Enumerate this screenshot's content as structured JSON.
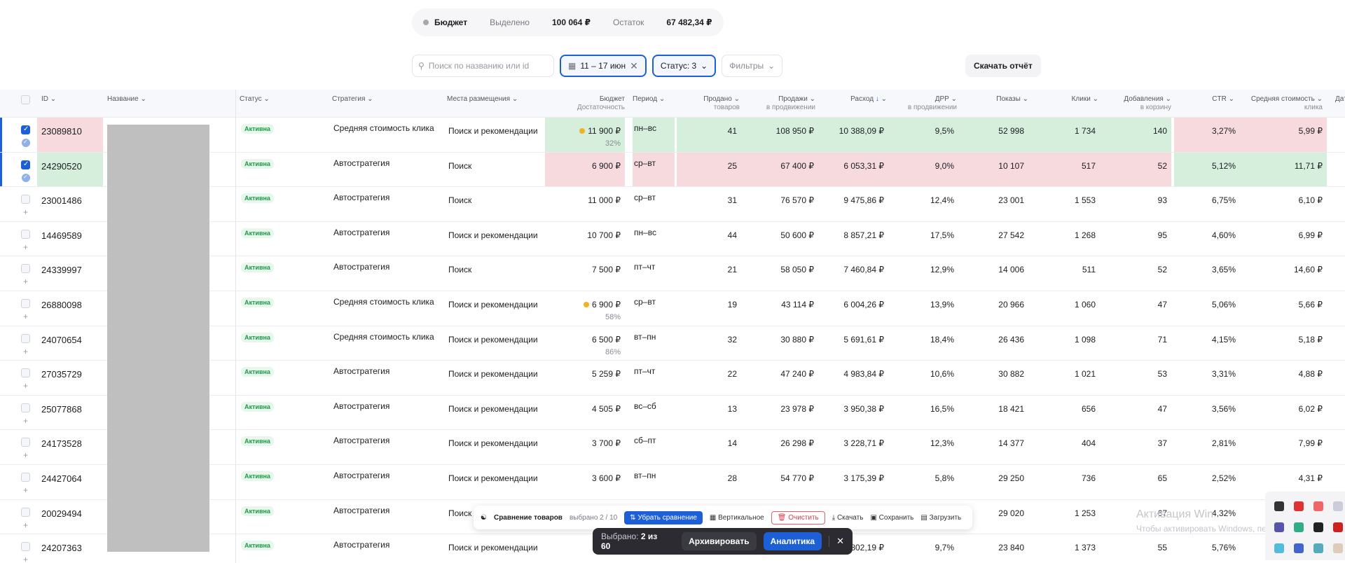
{
  "budget": {
    "label": "Бюджет",
    "allocated_label": "Выделено",
    "allocated_value": "100 064 ₽",
    "rest_label": "Остаток",
    "rest_value": "67 482,34 ₽"
  },
  "filters": {
    "search_placeholder": "Поиск по названию или id",
    "date": "11 – 17 июн",
    "status": "Статус: 3",
    "filters": "Фильтры",
    "download": "Скачать отчёт"
  },
  "headers": {
    "id": "ID",
    "name": "Название",
    "status": "Статус",
    "strategy": "Стратегия",
    "places": "Места размещения",
    "budget": "Бюджет",
    "budget_sub": "Достаточность",
    "period": "Период",
    "sold_1": "Продано",
    "sold_2": "товаров",
    "sales_1": "Продажи",
    "sales_2": "в продвижении",
    "spend": "Расход",
    "drr_1": "ДРР",
    "drr_2": "в продвижении",
    "views": "Показы",
    "clicks": "Клики",
    "cart_1": "Добавления",
    "cart_2": "в корзину",
    "ctr": "CTR",
    "cpc_1": "Средняя стоимость",
    "cpc_2": "клика",
    "date": "Дат"
  },
  "status_text": "Активна",
  "rows": [
    {
      "id": "23089810",
      "strategy": "Средняя стоимость клика",
      "places": "Поиск и рекомендации",
      "budget": "11 900 ₽",
      "pct": "32%",
      "period": "пн–вс",
      "sold": "41",
      "sales": "108 950 ₽",
      "spend": "10 388,09 ₽",
      "drr": "9,5%",
      "views": "52 998",
      "clicks": "1 734",
      "cart": "140",
      "ctr": "3,27%",
      "cpc": "5,99 ₽"
    },
    {
      "id": "24290520",
      "strategy": "Автостратегия",
      "places": "Поиск",
      "budget": "6 900 ₽",
      "pct": "",
      "period": "ср–вт",
      "sold": "25",
      "sales": "67 400 ₽",
      "spend": "6 053,31 ₽",
      "drr": "9,0%",
      "views": "10 107",
      "clicks": "517",
      "cart": "52",
      "ctr": "5,12%",
      "cpc": "11,71 ₽"
    },
    {
      "id": "23001486",
      "strategy": "Автостратегия",
      "places": "Поиск",
      "budget": "11 000 ₽",
      "pct": "",
      "period": "ср–вт",
      "sold": "31",
      "sales": "76 570 ₽",
      "spend": "9 475,86 ₽",
      "drr": "12,4%",
      "views": "23 001",
      "clicks": "1 553",
      "cart": "93",
      "ctr": "6,75%",
      "cpc": "6,10 ₽"
    },
    {
      "id": "14469589",
      "strategy": "Автостратегия",
      "places": "Поиск и рекомендации",
      "budget": "10 700 ₽",
      "pct": "",
      "period": "пн–вс",
      "sold": "44",
      "sales": "50 600 ₽",
      "spend": "8 857,21 ₽",
      "drr": "17,5%",
      "views": "27 542",
      "clicks": "1 268",
      "cart": "95",
      "ctr": "4,60%",
      "cpc": "6,99 ₽"
    },
    {
      "id": "24339997",
      "strategy": "Автостратегия",
      "places": "Поиск",
      "budget": "7 500 ₽",
      "pct": "",
      "period": "пт–чт",
      "sold": "21",
      "sales": "58 050 ₽",
      "spend": "7 460,84 ₽",
      "drr": "12,9%",
      "views": "14 006",
      "clicks": "511",
      "cart": "52",
      "ctr": "3,65%",
      "cpc": "14,60 ₽"
    },
    {
      "id": "26880098",
      "strategy": "Средняя стоимость клика",
      "places": "Поиск и рекомендации",
      "budget": "6 900 ₽",
      "pct": "58%",
      "period": "ср–вт",
      "sold": "19",
      "sales": "43 114 ₽",
      "spend": "6 004,26 ₽",
      "drr": "13,9%",
      "views": "20 966",
      "clicks": "1 060",
      "cart": "47",
      "ctr": "5,06%",
      "cpc": "5,66 ₽"
    },
    {
      "id": "24070654",
      "strategy": "Средняя стоимость клика",
      "places": "Поиск и рекомендации",
      "budget": "6 500 ₽",
      "pct": "86%",
      "period": "вт–пн",
      "sold": "32",
      "sales": "30 880 ₽",
      "spend": "5 691,61 ₽",
      "drr": "18,4%",
      "views": "26 436",
      "clicks": "1 098",
      "cart": "71",
      "ctr": "4,15%",
      "cpc": "5,18 ₽"
    },
    {
      "id": "27035729",
      "strategy": "Автостратегия",
      "places": "Поиск и рекомендации",
      "budget": "5 259 ₽",
      "pct": "",
      "period": "пт–чт",
      "sold": "22",
      "sales": "47 240 ₽",
      "spend": "4 983,84 ₽",
      "drr": "10,6%",
      "views": "30 882",
      "clicks": "1 021",
      "cart": "53",
      "ctr": "3,31%",
      "cpc": "4,88 ₽"
    },
    {
      "id": "25077868",
      "strategy": "Автостратегия",
      "places": "Поиск и рекомендации",
      "budget": "4 505 ₽",
      "pct": "",
      "period": "вс–сб",
      "sold": "13",
      "sales": "23 978 ₽",
      "spend": "3 950,38 ₽",
      "drr": "16,5%",
      "views": "18 421",
      "clicks": "656",
      "cart": "47",
      "ctr": "3,56%",
      "cpc": "6,02 ₽"
    },
    {
      "id": "24173528",
      "strategy": "Автостратегия",
      "places": "Поиск и рекомендации",
      "budget": "3 700 ₽",
      "pct": "",
      "period": "сб–пт",
      "sold": "14",
      "sales": "26 298 ₽",
      "spend": "3 228,71 ₽",
      "drr": "12,3%",
      "views": "14 377",
      "clicks": "404",
      "cart": "37",
      "ctr": "2,81%",
      "cpc": "7,99 ₽"
    },
    {
      "id": "24427064",
      "strategy": "Автостратегия",
      "places": "Поиск и рекомендации",
      "budget": "3 600 ₽",
      "pct": "",
      "period": "вт–пн",
      "sold": "28",
      "sales": "54 770 ₽",
      "spend": "3 175,39 ₽",
      "drr": "5,8%",
      "views": "29 250",
      "clicks": "736",
      "cart": "65",
      "ctr": "2,52%",
      "cpc": "4,31 ₽"
    },
    {
      "id": "20029494",
      "strategy": "Автостратегия",
      "places": "Поиск и",
      "budget": "",
      "pct": "",
      "period": "",
      "sold": "",
      "sales": "",
      "spend": "",
      "drr": "",
      "views": "29 020",
      "clicks": "1 253",
      "cart": "67",
      "ctr": "4,32%",
      "cpc": ""
    },
    {
      "id": "24207363",
      "strategy": "Автостратегия",
      "places": "Поиск и рекомендации",
      "budget": "",
      "pct": "",
      "period": "",
      "sold": "",
      "sales": "",
      "spend": "802,19 ₽",
      "drr": "9,7%",
      "views": "23 840",
      "clicks": "1 373",
      "cart": "55",
      "ctr": "5,76%",
      "cpc": ""
    }
  ],
  "compare_bar": {
    "title": "Сравнение товаров",
    "selected": "выбрано 2 / 10",
    "remove": "Убрать сравнение",
    "vertical": "Вертикальное",
    "clear": "Очистить",
    "download": "Скачать",
    "save": "Сохранить",
    "load": "Загрузить"
  },
  "selection_bar": {
    "label": "Выбрано:",
    "count": "2 из 60",
    "archive": "Архивировать",
    "analytics": "Аналитика"
  },
  "watermark": {
    "line1": "Активация Win",
    "line2": "Чтобы активировать Windows, перейдите в раздел"
  },
  "colors": {
    "accent": "#1d5fd6",
    "good": "#d5efdc",
    "bad": "#f6dadd",
    "status": "#1c9a47"
  }
}
